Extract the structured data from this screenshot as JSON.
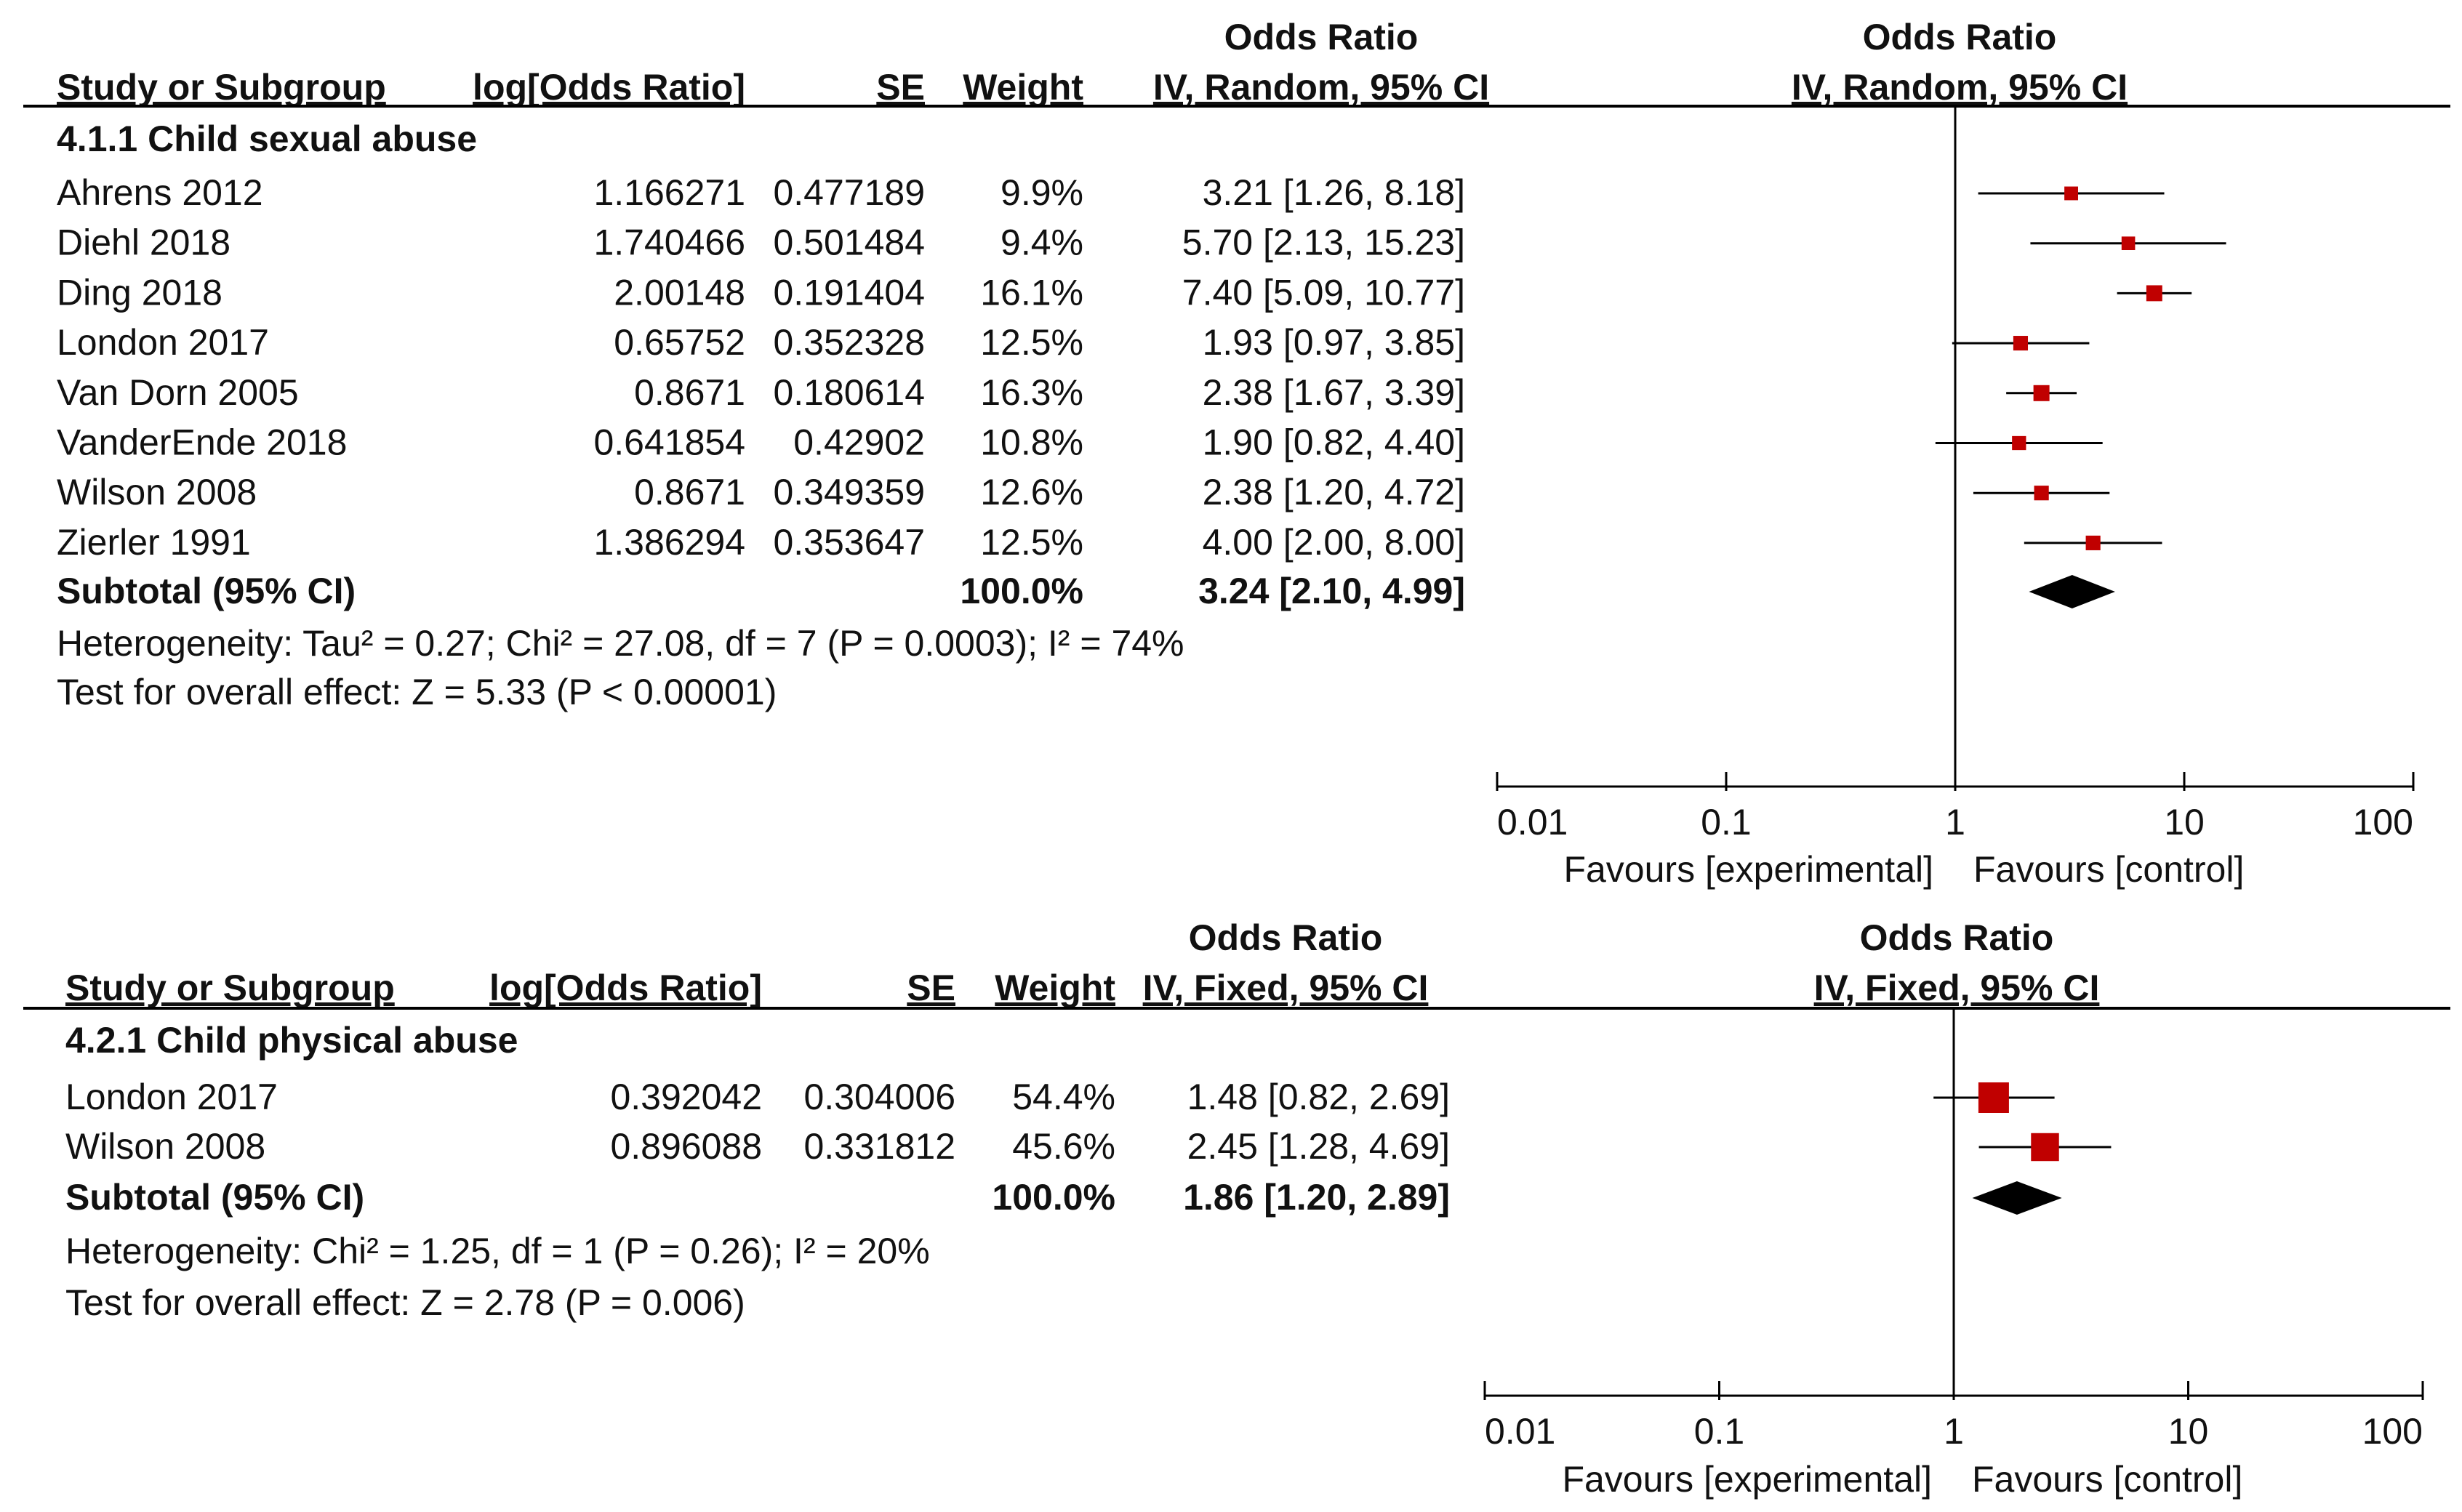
{
  "chart_data": [
    {
      "type": "forest",
      "columns": {
        "study": "Study or Subgroup",
        "log_or": "log[Odds Ratio]",
        "se": "SE",
        "weight": "Weight",
        "ci_header_top": "Odds Ratio",
        "ci_header_bottom": "IV, Random, 95% CI",
        "plot_header_top": "Odds Ratio",
        "plot_header_bottom": "IV, Random, 95% CI"
      },
      "subgroup": "4.1.1 Child sexual abuse",
      "studies": [
        {
          "name": "Ahrens 2012",
          "log_or": "1.166271",
          "se": "0.477189",
          "weight": "9.9%",
          "ci": "3.21 [1.26, 8.18]",
          "or": 3.21,
          "lower": 1.26,
          "upper": 8.18,
          "w": 9.9
        },
        {
          "name": "Diehl 2018",
          "log_or": "1.740466",
          "se": "0.501484",
          "weight": "9.4%",
          "ci": "5.70 [2.13, 15.23]",
          "or": 5.7,
          "lower": 2.13,
          "upper": 15.23,
          "w": 9.4
        },
        {
          "name": "Ding 2018",
          "log_or": "2.00148",
          "se": "0.191404",
          "weight": "16.1%",
          "ci": "7.40 [5.09, 10.77]",
          "or": 7.4,
          "lower": 5.09,
          "upper": 10.77,
          "w": 16.1
        },
        {
          "name": "London 2017",
          "log_or": "0.65752",
          "se": "0.352328",
          "weight": "12.5%",
          "ci": "1.93 [0.97, 3.85]",
          "or": 1.93,
          "lower": 0.97,
          "upper": 3.85,
          "w": 12.5
        },
        {
          "name": "Van Dorn 2005",
          "log_or": "0.8671",
          "se": "0.180614",
          "weight": "16.3%",
          "ci": "2.38 [1.67, 3.39]",
          "or": 2.38,
          "lower": 1.67,
          "upper": 3.39,
          "w": 16.3
        },
        {
          "name": "VanderEnde 2018",
          "log_or": "0.641854",
          "se": "0.42902",
          "weight": "10.8%",
          "ci": "1.90 [0.82, 4.40]",
          "or": 1.9,
          "lower": 0.82,
          "upper": 4.4,
          "w": 10.8
        },
        {
          "name": "Wilson 2008",
          "log_or": "0.8671",
          "se": "0.349359",
          "weight": "12.6%",
          "ci": "2.38 [1.20, 4.72]",
          "or": 2.38,
          "lower": 1.2,
          "upper": 4.72,
          "w": 12.6
        },
        {
          "name": "Zierler 1991",
          "log_or": "1.386294",
          "se": "0.353647",
          "weight": "12.5%",
          "ci": "4.00 [2.00, 8.00]",
          "or": 4.0,
          "lower": 2.0,
          "upper": 8.0,
          "w": 12.5
        }
      ],
      "subtotal": {
        "label": "Subtotal (95% CI)",
        "weight": "100.0%",
        "ci": "3.24 [2.10, 4.99]",
        "or": 3.24,
        "lower": 2.1,
        "upper": 4.99
      },
      "heterogeneity": "Heterogeneity: Tau² = 0.27; Chi² = 27.08, df = 7 (P = 0.0003); I² = 74%",
      "overall_effect": "Test for overall effect: Z = 5.33 (P < 0.00001)",
      "axis": {
        "scale": "log",
        "range": [
          0.01,
          100
        ],
        "ticks": [
          "0.01",
          "0.1",
          "1",
          "10",
          "100"
        ],
        "tick_values": [
          0.01,
          0.1,
          1,
          10,
          100
        ],
        "null_value": 1
      },
      "favours_left": "Favours [experimental]",
      "favours_right": "Favours [control]"
    },
    {
      "type": "forest",
      "columns": {
        "study": "Study or Subgroup",
        "log_or": "log[Odds Ratio]",
        "se": "SE",
        "weight": "Weight",
        "ci_header_top": "Odds Ratio",
        "ci_header_bottom": "IV, Fixed, 95% CI",
        "plot_header_top": "Odds Ratio",
        "plot_header_bottom": "IV, Fixed, 95% CI"
      },
      "subgroup": "4.2.1 Child physical abuse",
      "studies": [
        {
          "name": "London 2017",
          "log_or": "0.392042",
          "se": "0.304006",
          "weight": "54.4%",
          "ci": "1.48 [0.82, 2.69]",
          "or": 1.48,
          "lower": 0.82,
          "upper": 2.69,
          "w": 54.4
        },
        {
          "name": "Wilson 2008",
          "log_or": "0.896088",
          "se": "0.331812",
          "weight": "45.6%",
          "ci": "2.45 [1.28, 4.69]",
          "or": 2.45,
          "lower": 1.28,
          "upper": 4.69,
          "w": 45.6
        }
      ],
      "subtotal": {
        "label": "Subtotal (95% CI)",
        "weight": "100.0%",
        "ci": "1.86 [1.20, 2.89]",
        "or": 1.86,
        "lower": 1.2,
        "upper": 2.89
      },
      "heterogeneity": "Heterogeneity: Chi² = 1.25, df = 1 (P = 0.26); I² = 20%",
      "overall_effect": "Test for overall effect: Z = 2.78 (P = 0.006)",
      "axis": {
        "scale": "log",
        "range": [
          0.01,
          100
        ],
        "ticks": [
          "0.01",
          "0.1",
          "1",
          "10",
          "100"
        ],
        "tick_values": [
          0.01,
          0.1,
          1,
          10,
          100
        ],
        "null_value": 1
      },
      "favours_left": "Favours [experimental]",
      "favours_right": "Favours [control]"
    }
  ],
  "colors": {
    "marker": "#c00000",
    "diamond": "#000000",
    "line": "#000000",
    "text": "#111111"
  }
}
